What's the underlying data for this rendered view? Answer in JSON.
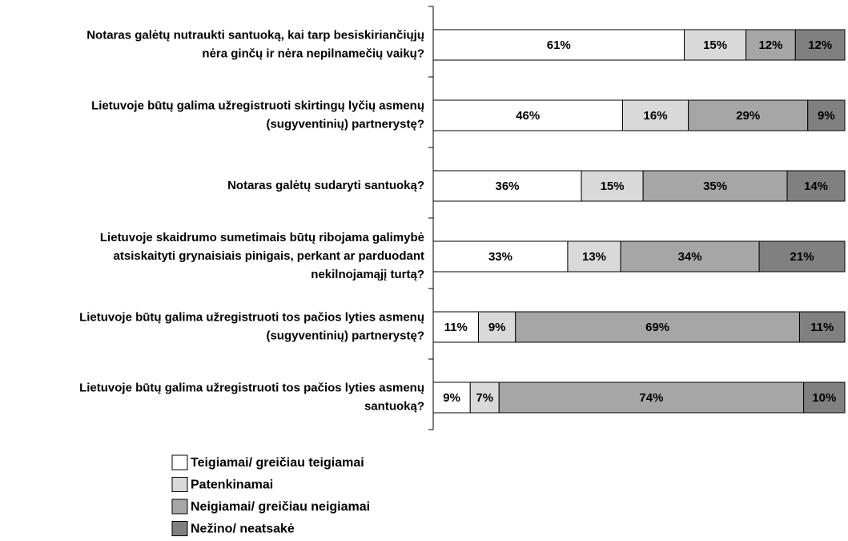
{
  "chart_data": {
    "type": "stacked-bar-horizontal",
    "categories": [
      [
        "Notaras galėtų nutraukti santuoką, kai tarp besiskiriančiųjų",
        "nėra ginčų ir nėra nepilnamečių vaikų?"
      ],
      [
        "Lietuvoje būtų galima užregistruoti skirtingų lyčių asmenų",
        "(sugyventinių) partnerystę?"
      ],
      [
        "Notaras galėtų sudaryti santuoką?"
      ],
      [
        "Lietuvoje skaidrumo sumetimais būtų ribojama galimybė",
        "atsiskaityti grynaisiais pinigais, perkant ar parduodant",
        "nekilnojamąjį turtą?"
      ],
      [
        "Lietuvoje būtų galima užregistruoti tos pačios lyties asmenų",
        "(sugyventinių) partnerystę?"
      ],
      [
        "Lietuvoje būtų galima užregistruoti tos pačios lyties asmenų",
        "santuoką?"
      ]
    ],
    "series": [
      {
        "name": "Teigiamai/ greičiau teigiamai",
        "color": "#ffffff",
        "values": [
          61,
          46,
          36,
          33,
          11,
          9
        ],
        "value_labels": [
          "61%",
          "46%",
          "36%",
          "33%",
          "11%",
          "9%"
        ]
      },
      {
        "name": "Patenkinamai",
        "color": "#d9d9d9",
        "values": [
          15,
          16,
          15,
          13,
          9,
          7
        ],
        "value_labels": [
          "15%",
          "16%",
          "15%",
          "13%",
          "9%",
          "7%"
        ]
      },
      {
        "name": "Neigiamai/ greičiau neigiamai",
        "color": "#a6a6a6",
        "values": [
          12,
          29,
          35,
          34,
          69,
          74
        ],
        "value_labels": [
          "12%",
          "29%",
          "35%",
          "34%",
          "69%",
          "74%"
        ]
      },
      {
        "name": "Nežino/ neatsakė",
        "color": "#808080",
        "values": [
          12,
          9,
          14,
          21,
          11,
          10
        ],
        "value_labels": [
          "12%",
          "9%",
          "14%",
          "21%",
          "11%",
          "10%"
        ]
      }
    ]
  }
}
